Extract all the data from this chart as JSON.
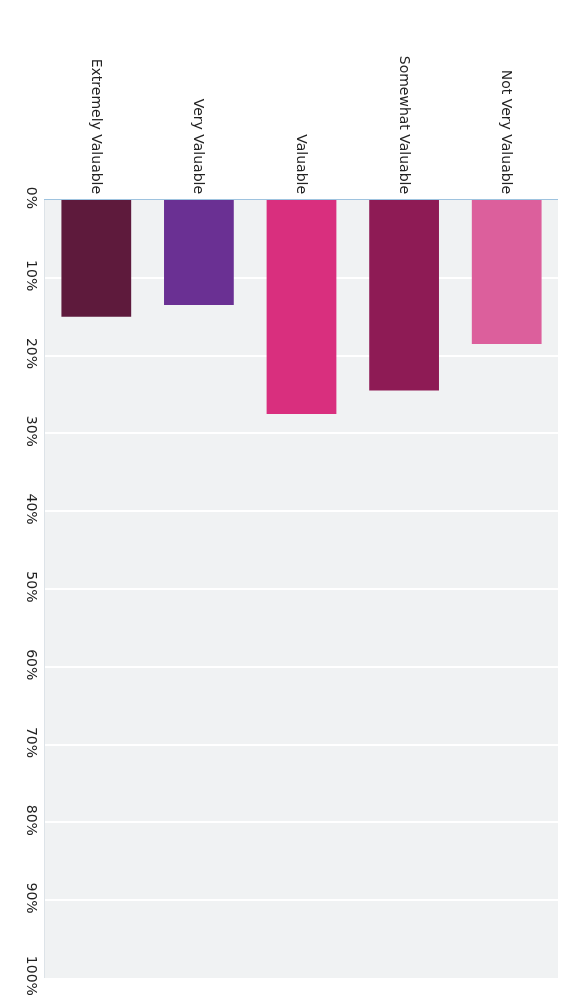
{
  "chart_data": {
    "type": "bar",
    "categories": [
      "Extremely Valuable",
      "Very Valuable",
      "Valuable",
      "Somewhat Valuable",
      "Not Very Valuable"
    ],
    "values": [
      15,
      13.5,
      27.5,
      24.5,
      18.5
    ],
    "colors": [
      "#5e1a3c",
      "#6a3093",
      "#d92f7e",
      "#8e1b55",
      "#dc5f9c"
    ],
    "ylim": [
      100,
      0
    ],
    "yticks": [
      {
        "value": 0,
        "label": "0%"
      },
      {
        "value": 10,
        "label": "10%"
      },
      {
        "value": 20,
        "label": "20%"
      },
      {
        "value": 30,
        "label": "30%"
      },
      {
        "value": 40,
        "label": "40%"
      },
      {
        "value": 50,
        "label": "50%"
      },
      {
        "value": 60,
        "label": "60%"
      },
      {
        "value": 70,
        "label": "70%"
      },
      {
        "value": 80,
        "label": "80%"
      },
      {
        "value": 90,
        "label": "90%"
      },
      {
        "value": 100,
        "label": "100%"
      }
    ],
    "grid": "y"
  }
}
